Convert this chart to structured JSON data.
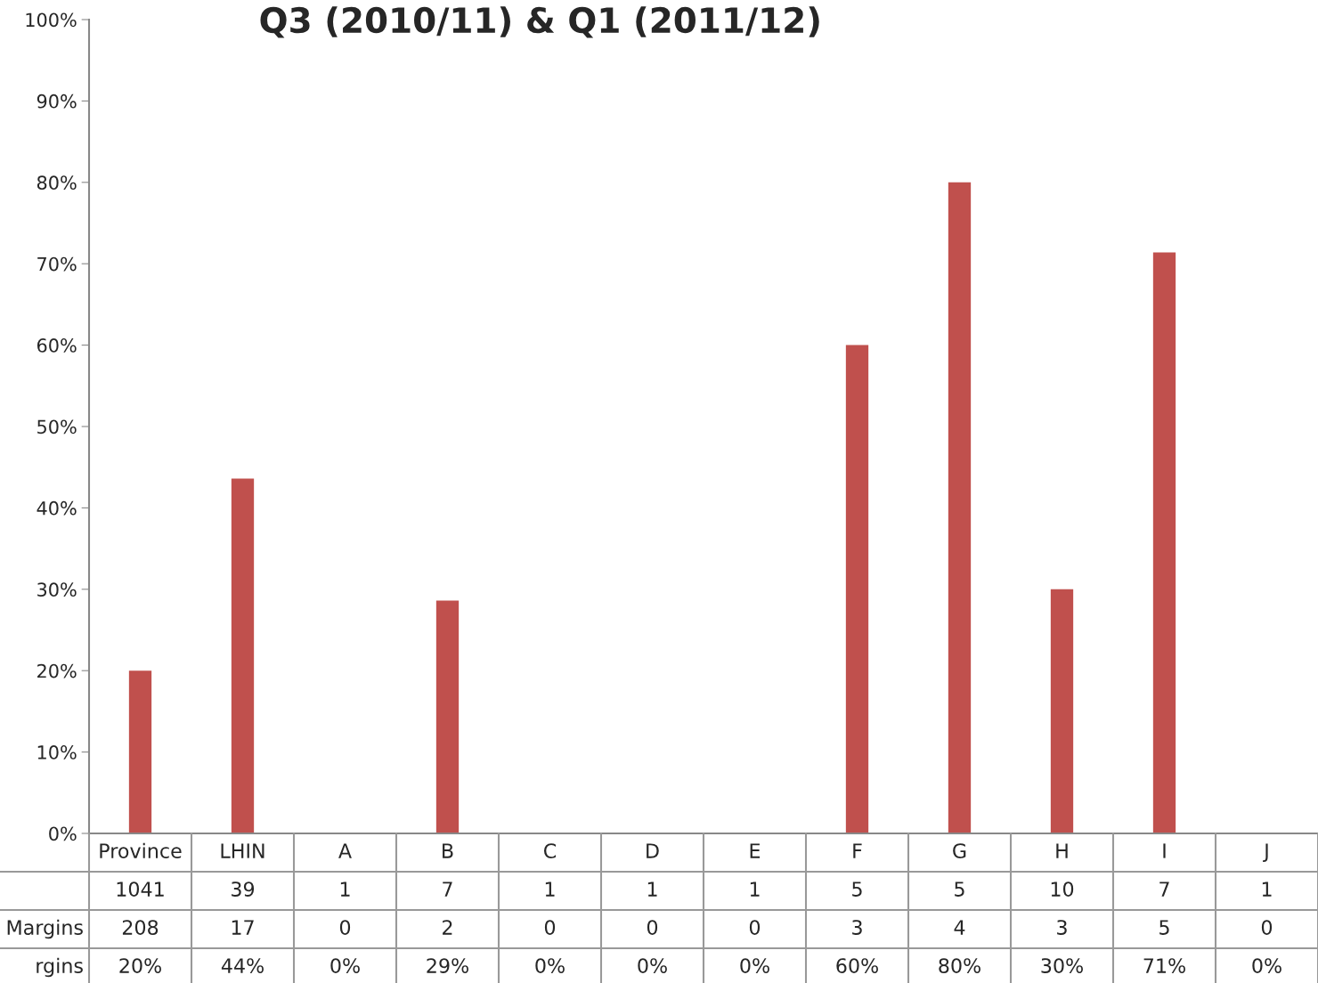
{
  "chart_data": {
    "type": "bar",
    "title": "Q3 (2010/11) & Q1 (2011/12)",
    "categories": [
      "Province",
      "LHIN",
      "A",
      "B",
      "C",
      "D",
      "E",
      "F",
      "G",
      "H",
      "I",
      "J"
    ],
    "ylim": [
      0,
      100
    ],
    "yticks": [
      {
        "value": 0,
        "label": "0%"
      },
      {
        "value": 10,
        "label": "10%"
      },
      {
        "value": 20,
        "label": "20%"
      },
      {
        "value": 30,
        "label": "30%"
      },
      {
        "value": 40,
        "label": "40%"
      },
      {
        "value": 50,
        "label": "50%"
      },
      {
        "value": 60,
        "label": "60%"
      },
      {
        "value": 70,
        "label": "70%"
      },
      {
        "value": 80,
        "label": "80%"
      },
      {
        "value": 90,
        "label": "90%"
      },
      {
        "value": 100,
        "label": "100%"
      }
    ],
    "grid": false,
    "series": [
      {
        "type": "other",
        "values": [
          null,
          null,
          null,
          null,
          null,
          null,
          null,
          null,
          null,
          null,
          null,
          null
        ],
        "value_labels": [
          "1041",
          "39",
          "1",
          "7",
          "1",
          "1",
          "1",
          "5",
          "5",
          "10",
          "7",
          "1"
        ]
      },
      {
        "type": "other",
        "name": "Margins",
        "values": [
          null,
          null,
          null,
          null,
          null,
          null,
          null,
          null,
          null,
          null,
          null,
          null
        ],
        "value_labels": [
          "208",
          "17",
          "0",
          "2",
          "0",
          "0",
          "0",
          "3",
          "4",
          "3",
          "5",
          "0"
        ]
      },
      {
        "name": "rgins",
        "color": "#c0504d",
        "values": [
          20,
          43.6,
          0,
          28.6,
          0,
          0,
          0,
          60,
          80,
          30,
          71.4,
          0
        ],
        "value_labels": [
          "20%",
          "44%",
          "0%",
          "29%",
          "0%",
          "0%",
          "0%",
          "60%",
          "80%",
          "30%",
          "71%",
          "0%"
        ]
      }
    ]
  }
}
